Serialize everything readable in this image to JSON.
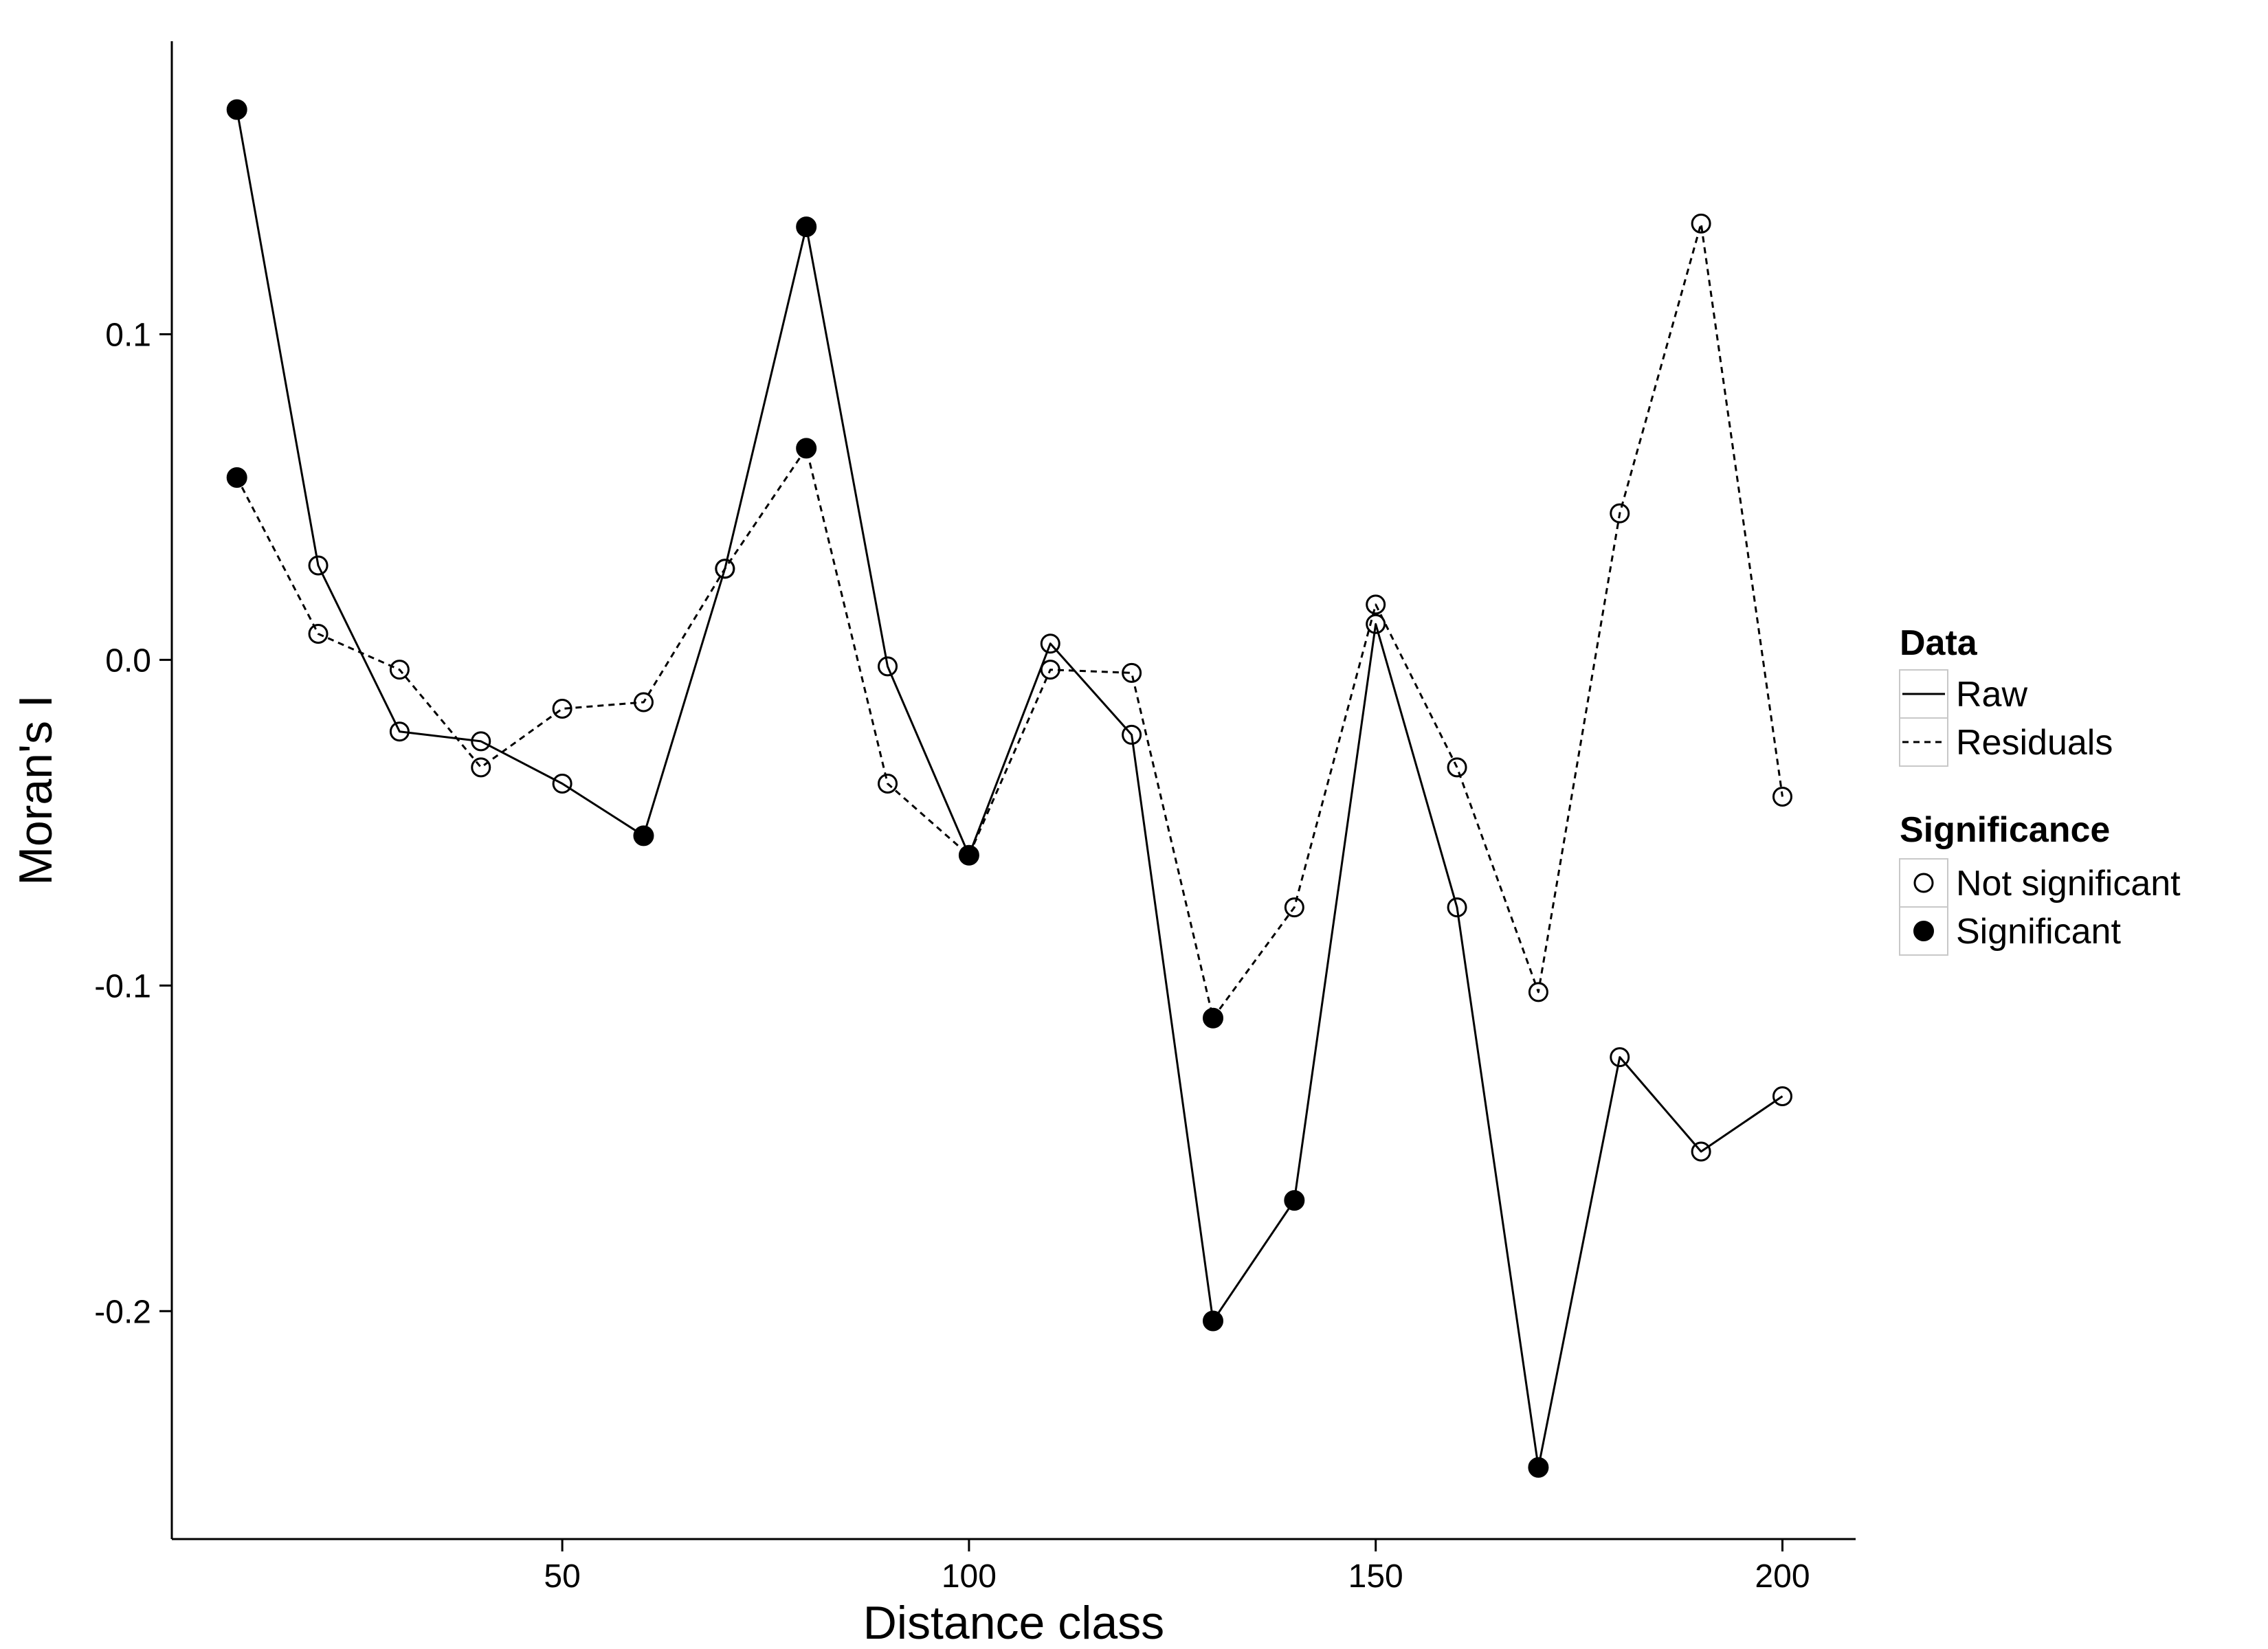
{
  "chart_data": {
    "type": "line",
    "title": "",
    "xlabel": "Distance class",
    "ylabel": "Moran's I",
    "xlim": [
      2,
      209
    ],
    "ylim": [
      -0.27,
      0.19
    ],
    "x_ticks": [
      50,
      100,
      150,
      200
    ],
    "x_tick_labels": [
      "50",
      "100",
      "150",
      "200"
    ],
    "y_ticks": [
      -0.2,
      -0.1,
      0.0,
      0.1
    ],
    "y_tick_labels": [
      "-0.2",
      "-0.1",
      "0.0",
      "0.1"
    ],
    "grid": false,
    "legend_position": "right",
    "x": [
      10,
      20,
      30,
      40,
      50,
      60,
      70,
      80,
      90,
      100,
      110,
      120,
      130,
      140,
      150,
      160,
      170,
      180,
      190,
      200
    ],
    "series": [
      {
        "name": "Raw",
        "line_style": "solid",
        "values": [
          0.169,
          0.029,
          -0.022,
          -0.025,
          -0.038,
          -0.054,
          0.028,
          0.133,
          -0.002,
          -0.06,
          0.005,
          -0.023,
          -0.203,
          -0.166,
          0.011,
          -0.076,
          -0.248,
          -0.122,
          -0.151,
          -0.134
        ],
        "significant": [
          true,
          false,
          false,
          false,
          false,
          true,
          false,
          true,
          false,
          true,
          false,
          false,
          true,
          true,
          false,
          false,
          true,
          false,
          false,
          false
        ]
      },
      {
        "name": "Residuals",
        "line_style": "dashed",
        "values": [
          0.056,
          0.008,
          -0.003,
          -0.033,
          -0.015,
          -0.013,
          0.028,
          0.065,
          -0.038,
          -0.06,
          -0.003,
          -0.004,
          -0.11,
          -0.076,
          0.017,
          -0.033,
          -0.102,
          0.045,
          0.134,
          -0.042
        ],
        "significant": [
          true,
          false,
          false,
          false,
          false,
          false,
          false,
          true,
          false,
          false,
          false,
          false,
          true,
          false,
          false,
          false,
          false,
          false,
          false,
          false
        ]
      }
    ],
    "legend": {
      "data_title": "Data",
      "data_items": [
        "Raw",
        "Residuals"
      ],
      "significance_title": "Significance",
      "significance_items": [
        "Not significant",
        "Significant"
      ]
    }
  }
}
